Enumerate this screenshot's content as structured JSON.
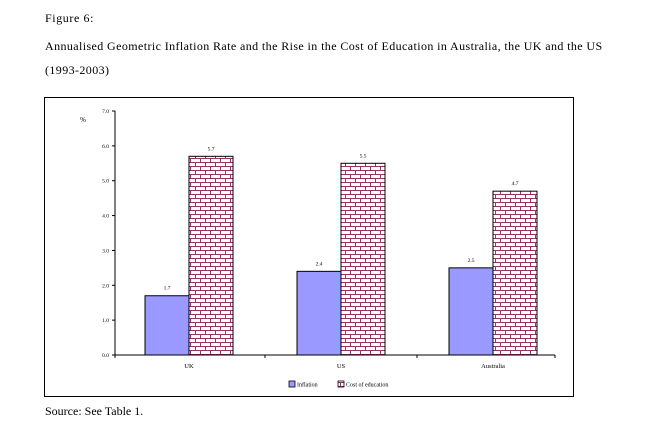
{
  "figure": {
    "label": "Figure 6:",
    "title": "Annualised Geometric Inflation Rate and the Rise in the Cost of Education in Australia, the UK and the US (1993-2003)",
    "source": "Source: See Table 1."
  },
  "colors": {
    "inflation_fill": "#9999ff",
    "education_hatch": "#993366",
    "frame": "#000000"
  },
  "chart_data": {
    "type": "bar",
    "title": "",
    "xlabel": "",
    "ylabel": "%",
    "ylim": [
      0,
      7
    ],
    "yticks": [
      0,
      1,
      2,
      3,
      4,
      5,
      6,
      7
    ],
    "ytick_labels": [
      "0.0",
      "1.0",
      "2.0",
      "3.0",
      "4.0",
      "5.0",
      "6.0",
      "7.0"
    ],
    "categories": [
      "UK",
      "US",
      "Australia"
    ],
    "series": [
      {
        "name": "Inflation",
        "values": [
          1.7,
          2.4,
          2.5
        ],
        "labels": [
          "1.7",
          "2.4",
          "2.5"
        ],
        "pattern": "solid"
      },
      {
        "name": "Cost of education",
        "values": [
          5.7,
          5.5,
          4.7
        ],
        "labels": [
          "5.7",
          "5.5",
          "4.7"
        ],
        "pattern": "brick"
      }
    ],
    "legend_position": "bottom",
    "grid": false
  }
}
